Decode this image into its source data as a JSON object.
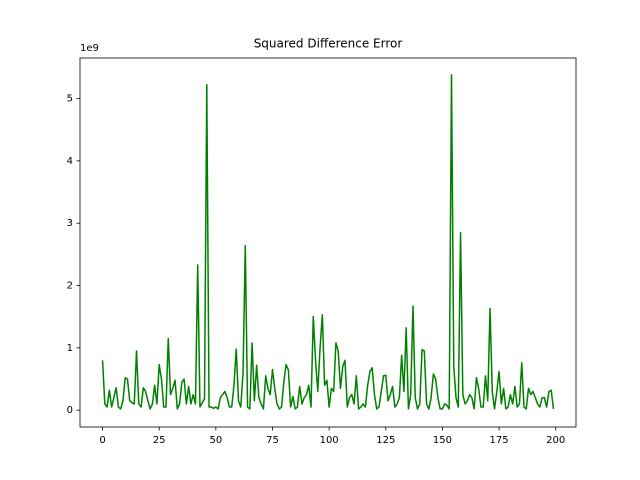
{
  "chart_data": {
    "type": "line",
    "title": "Squared Difference Error",
    "y_scale_label": "1e9",
    "color": "#008000",
    "x": [
      0,
      1,
      2,
      3,
      4,
      5,
      6,
      7,
      8,
      9,
      10,
      11,
      12,
      13,
      14,
      15,
      16,
      17,
      18,
      19,
      20,
      21,
      22,
      23,
      24,
      25,
      26,
      27,
      28,
      29,
      30,
      31,
      32,
      33,
      34,
      35,
      36,
      37,
      38,
      39,
      40,
      41,
      42,
      43,
      44,
      45,
      46,
      47,
      48,
      49,
      50,
      51,
      52,
      53,
      54,
      55,
      56,
      57,
      58,
      59,
      60,
      61,
      62,
      63,
      64,
      65,
      66,
      67,
      68,
      69,
      70,
      71,
      72,
      73,
      74,
      75,
      76,
      77,
      78,
      79,
      80,
      81,
      82,
      83,
      84,
      85,
      86,
      87,
      88,
      89,
      90,
      91,
      92,
      93,
      94,
      95,
      96,
      97,
      98,
      99,
      100,
      101,
      102,
      103,
      104,
      105,
      106,
      107,
      108,
      109,
      110,
      111,
      112,
      113,
      114,
      115,
      116,
      117,
      118,
      119,
      120,
      121,
      122,
      123,
      124,
      125,
      126,
      127,
      128,
      129,
      130,
      131,
      132,
      133,
      134,
      135,
      136,
      137,
      138,
      139,
      140,
      141,
      142,
      143,
      144,
      145,
      146,
      147,
      148,
      149,
      150,
      151,
      152,
      153,
      154,
      155,
      156,
      157,
      158,
      159,
      160,
      161,
      162,
      163,
      164,
      165,
      166,
      167,
      168,
      169,
      170,
      171,
      172,
      173,
      174,
      175,
      176,
      177,
      178,
      179,
      180,
      181,
      182,
      183,
      184,
      185,
      186,
      187,
      188,
      189,
      190,
      191,
      192,
      193,
      194,
      195,
      196,
      197,
      198,
      199
    ],
    "values": [
      0.8,
      0.1,
      0.05,
      0.32,
      0.05,
      0.2,
      0.36,
      0.05,
      0.02,
      0.15,
      0.52,
      0.5,
      0.15,
      0.12,
      0.1,
      0.95,
      0.1,
      0.05,
      0.36,
      0.3,
      0.15,
      0.02,
      0.1,
      0.4,
      0.1,
      0.73,
      0.5,
      0.05,
      0.05,
      1.15,
      0.25,
      0.35,
      0.48,
      0.02,
      0.1,
      0.45,
      0.5,
      0.1,
      0.38,
      0.1,
      0.25,
      0.1,
      2.33,
      0.05,
      0.12,
      0.18,
      5.22,
      0.05,
      0.05,
      0.03,
      0.05,
      0.02,
      0.2,
      0.25,
      0.3,
      0.2,
      0.05,
      0.05,
      0.4,
      0.98,
      0.15,
      0.05,
      0.6,
      2.64,
      0.05,
      0.02,
      1.08,
      0.15,
      0.72,
      0.2,
      0.1,
      0.02,
      0.55,
      0.35,
      0.25,
      0.65,
      0.35,
      0.1,
      0.02,
      0.05,
      0.45,
      0.73,
      0.65,
      0.05,
      0.22,
      0.02,
      0.05,
      0.38,
      0.1,
      0.2,
      0.25,
      0.4,
      0.05,
      1.5,
      0.8,
      0.3,
      1.0,
      1.53,
      0.4,
      0.48,
      0.05,
      0.35,
      0.3,
      1.08,
      0.95,
      0.35,
      0.7,
      0.8,
      0.05,
      0.2,
      0.25,
      0.1,
      0.55,
      0.02,
      0.05,
      0.1,
      0.05,
      0.4,
      0.62,
      0.68,
      0.25,
      0.02,
      0.05,
      0.3,
      0.55,
      0.56,
      0.15,
      0.25,
      0.38,
      0.05,
      0.1,
      0.2,
      0.88,
      0.3,
      1.32,
      0.02,
      0.25,
      1.67,
      0.2,
      0.02,
      0.1,
      0.97,
      0.95,
      0.1,
      0.02,
      0.2,
      0.58,
      0.5,
      0.2,
      0.02,
      0.02,
      0.1,
      0.08,
      0.02,
      5.38,
      0.7,
      0.2,
      0.05,
      2.85,
      0.25,
      0.1,
      0.15,
      0.25,
      0.2,
      0.02,
      0.52,
      0.35,
      0.05,
      0.05,
      0.55,
      0.15,
      1.63,
      0.3,
      0.02,
      0.3,
      0.62,
      0.1,
      0.35,
      0.02,
      0.05,
      0.25,
      0.1,
      0.38,
      0.05,
      0.1,
      0.76,
      0.05,
      0.02,
      0.35,
      0.25,
      0.3,
      0.2,
      0.1,
      0.05,
      0.2,
      0.2,
      0.05,
      0.3,
      0.32,
      0.02
    ],
    "xlim": [
      -9.95,
      208.95
    ],
    "ylim": [
      -0.27,
      5.65
    ],
    "xticks": [
      0,
      25,
      50,
      75,
      100,
      125,
      150,
      175,
      200
    ],
    "yticks": [
      0,
      1,
      2,
      3,
      4,
      5
    ]
  }
}
